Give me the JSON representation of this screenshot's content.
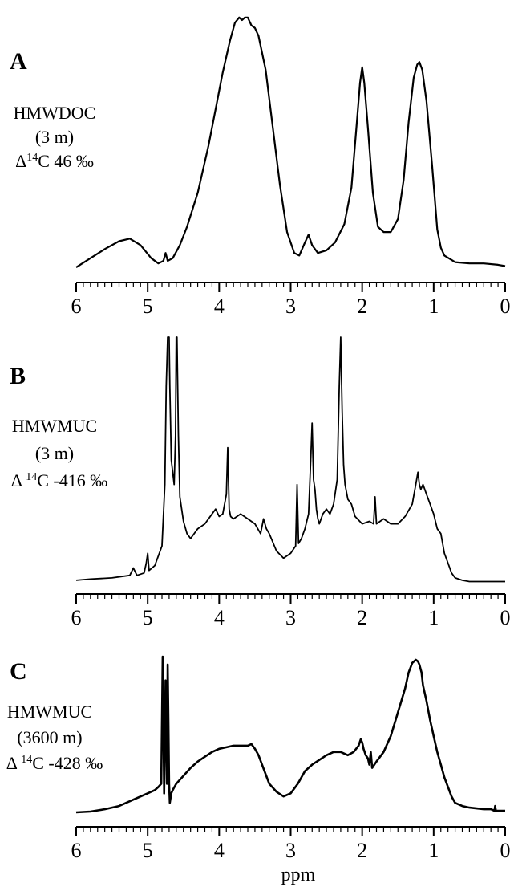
{
  "chart_data": [
    {
      "type": "line",
      "panel": "A",
      "sample_lines": [
        "HMWDOC",
        "(3 m)",
        "Δ14C 46 ‰"
      ],
      "xlabel": "",
      "ylabel": "",
      "xlim": [
        6,
        0
      ],
      "x_reversed": true,
      "xticks": [
        6,
        5,
        4,
        3,
        2,
        1,
        0
      ],
      "ylim": [
        0,
        100
      ],
      "grid": false,
      "series": [
        {
          "x": [
            6.0,
            5.8,
            5.6,
            5.4,
            5.25,
            5.1,
            4.95,
            4.85,
            4.78,
            4.75,
            4.72,
            4.65,
            4.55,
            4.45,
            4.3,
            4.15,
            4.05,
            3.95,
            3.85,
            3.78,
            3.72,
            3.68,
            3.64,
            3.6,
            3.55,
            3.5,
            3.45,
            3.35,
            3.25,
            3.15,
            3.05,
            2.95,
            2.88,
            2.8,
            2.75,
            2.7,
            2.62,
            2.5,
            2.38,
            2.25,
            2.15,
            2.08,
            2.03,
            2.0,
            1.97,
            1.92,
            1.85,
            1.78,
            1.7,
            1.6,
            1.5,
            1.42,
            1.35,
            1.28,
            1.23,
            1.2,
            1.16,
            1.1,
            1.02,
            0.95,
            0.9,
            0.85,
            0.7,
            0.5,
            0.3,
            0.1,
            0.0
          ],
          "y": [
            1.5,
            5,
            8.5,
            11.5,
            12.5,
            10,
            5,
            3,
            4,
            7,
            4,
            5,
            10,
            17,
            30,
            48,
            62,
            76,
            88,
            95,
            97,
            96,
            97,
            97,
            94,
            93,
            90,
            77,
            55,
            33,
            15,
            7,
            6,
            11,
            14,
            10,
            7,
            8,
            11,
            18,
            32,
            55,
            72,
            78,
            72,
            55,
            30,
            17,
            15,
            15,
            20,
            35,
            57,
            74,
            79,
            80,
            77,
            65,
            40,
            16,
            9,
            6,
            3.5,
            3,
            3,
            2.5,
            2
          ]
        }
      ]
    },
    {
      "type": "line",
      "panel": "B",
      "sample_lines": [
        "HMWMUC",
        "(3 m)",
        "Δ 14C -416 ‰"
      ],
      "xlabel": "",
      "ylabel": "",
      "xlim": [
        6,
        0
      ],
      "x_reversed": true,
      "xticks": [
        6,
        5,
        4,
        3,
        2,
        1,
        0
      ],
      "ylim": [
        0,
        100
      ],
      "grid": false,
      "series": [
        {
          "x": [
            6.0,
            5.8,
            5.5,
            5.25,
            5.2,
            5.15,
            5.05,
            5.02,
            5.0,
            4.98,
            4.9,
            4.8,
            4.76,
            4.74,
            4.72,
            4.71,
            4.7,
            4.69,
            4.67,
            4.63,
            4.61,
            4.6,
            4.59,
            4.57,
            4.55,
            4.5,
            4.45,
            4.4,
            4.3,
            4.2,
            4.1,
            4.05,
            4.0,
            3.95,
            3.9,
            3.88,
            3.86,
            3.84,
            3.8,
            3.7,
            3.6,
            3.5,
            3.42,
            3.38,
            3.34,
            3.3,
            3.2,
            3.1,
            3.0,
            2.93,
            2.91,
            2.89,
            2.85,
            2.8,
            2.75,
            2.72,
            2.7,
            2.68,
            2.66,
            2.64,
            2.62,
            2.6,
            2.55,
            2.5,
            2.45,
            2.4,
            2.35,
            2.32,
            2.3,
            2.28,
            2.26,
            2.24,
            2.2,
            2.15,
            2.1,
            2.0,
            1.9,
            1.84,
            1.82,
            1.8,
            1.7,
            1.6,
            1.5,
            1.4,
            1.3,
            1.25,
            1.22,
            1.2,
            1.18,
            1.15,
            1.1,
            1.05,
            1.0,
            0.95,
            0.9,
            0.85,
            0.8,
            0.75,
            0.7,
            0.6,
            0.5,
            0.3,
            0.1,
            0.0
          ],
          "y": [
            1,
            1.5,
            2,
            3,
            6,
            3,
            4,
            8,
            12,
            5,
            7,
            15,
            40,
            80,
            100,
            100,
            100,
            80,
            50,
            40,
            60,
            100,
            100,
            60,
            35,
            25,
            20,
            18,
            22,
            24,
            28,
            30,
            27,
            28,
            36,
            55,
            30,
            27,
            26,
            28,
            26,
            24,
            20,
            26,
            22,
            20,
            13,
            10,
            12,
            15,
            40,
            16,
            18,
            22,
            28,
            50,
            65,
            42,
            38,
            30,
            26,
            24,
            28,
            30,
            28,
            32,
            42,
            80,
            100,
            70,
            48,
            40,
            34,
            32,
            27,
            24,
            25,
            24,
            35,
            24,
            26,
            24,
            24,
            27,
            32,
            40,
            45,
            40,
            38,
            40,
            36,
            32,
            28,
            22,
            20,
            12,
            8,
            4,
            2,
            1,
            0.5,
            0.5,
            0.5,
            0.5
          ]
        }
      ]
    },
    {
      "type": "line",
      "panel": "C",
      "sample_lines": [
        "HMWMUC",
        "(3600 m)",
        "Δ 14C -428 ‰"
      ],
      "xlabel": "ppm",
      "ylabel": "",
      "xlim": [
        6,
        0
      ],
      "x_reversed": true,
      "xticks": [
        6,
        5,
        4,
        3,
        2,
        1,
        0
      ],
      "ylim": [
        0,
        100
      ],
      "grid": false,
      "series": [
        {
          "x": [
            6.0,
            5.8,
            5.6,
            5.4,
            5.2,
            5.0,
            4.9,
            4.85,
            4.81,
            4.79,
            4.78,
            4.77,
            4.75,
            4.73,
            4.72,
            4.71,
            4.7,
            4.69,
            4.67,
            4.65,
            4.6,
            4.5,
            4.4,
            4.3,
            4.2,
            4.1,
            4.0,
            3.9,
            3.8,
            3.7,
            3.6,
            3.55,
            3.5,
            3.45,
            3.4,
            3.35,
            3.3,
            3.2,
            3.1,
            3.0,
            2.9,
            2.8,
            2.7,
            2.6,
            2.5,
            2.4,
            2.3,
            2.2,
            2.12,
            2.05,
            2.02,
            2.0,
            1.98,
            1.95,
            1.92,
            1.9,
            1.88,
            1.86,
            1.8,
            1.7,
            1.6,
            1.5,
            1.4,
            1.35,
            1.3,
            1.25,
            1.22,
            1.2,
            1.17,
            1.15,
            1.1,
            1.05,
            1.0,
            0.95,
            0.9,
            0.85,
            0.8,
            0.75,
            0.7,
            0.6,
            0.5,
            0.4,
            0.3,
            0.2,
            0.15,
            0.14,
            0.13,
            0.1,
            0.0
          ],
          "y": [
            2,
            2.5,
            4,
            6,
            10,
            14,
            16,
            18,
            20,
            100,
            60,
            14,
            85,
            20,
            95,
            60,
            20,
            8,
            14,
            16,
            20,
            25,
            30,
            34,
            37,
            40,
            42,
            43,
            44,
            44,
            44,
            45,
            42,
            38,
            32,
            26,
            20,
            15,
            12,
            14,
            20,
            28,
            32,
            35,
            38,
            40,
            40,
            38,
            40,
            44,
            48,
            46,
            42,
            38,
            36,
            32,
            40,
            30,
            34,
            40,
            50,
            65,
            80,
            90,
            96,
            98,
            97,
            95,
            90,
            82,
            72,
            60,
            50,
            40,
            32,
            24,
            18,
            12,
            8,
            6,
            5,
            4.5,
            4,
            4,
            3,
            6,
            3,
            3,
            3
          ]
        }
      ]
    }
  ]
}
